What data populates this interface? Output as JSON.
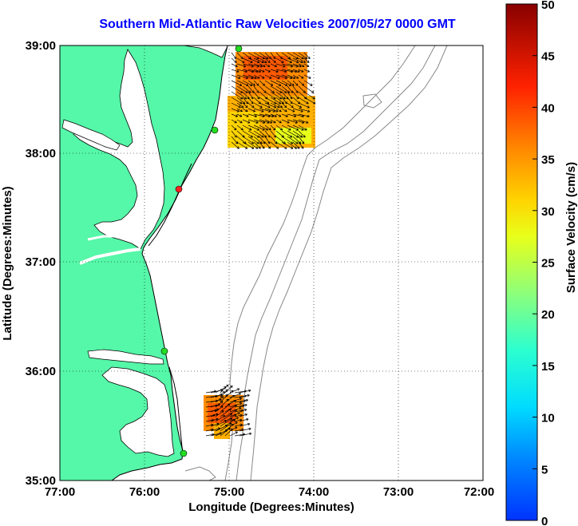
{
  "title": "Southern Mid-Atlantic Raw Velocities 2007/05/27 0000 GMT",
  "xaxis": {
    "label": "Longitude (Degrees:Minutes)",
    "ticks": [
      "77:00",
      "76:00",
      "75:00",
      "74:00",
      "73:00",
      "72:00"
    ]
  },
  "yaxis": {
    "label": "Latitude (Degrees:Minutes)",
    "ticks": [
      "39:00",
      "38:00",
      "37:00",
      "36:00",
      "35:00"
    ]
  },
  "colorbar": {
    "label": "Surface Velocity (cm/s)",
    "ticks": [
      "50",
      "45",
      "40",
      "35",
      "30",
      "25",
      "20",
      "15",
      "10",
      "5",
      "0"
    ],
    "min": 0,
    "max": 50
  },
  "colors": {
    "land": "#55f7a8",
    "coast": "#000000",
    "bathy": "#888888",
    "station": "#22dd22",
    "station_alert": "#ff2222"
  },
  "extent": {
    "lon": [
      -77,
      -72
    ],
    "lat": [
      35,
      39
    ]
  }
}
